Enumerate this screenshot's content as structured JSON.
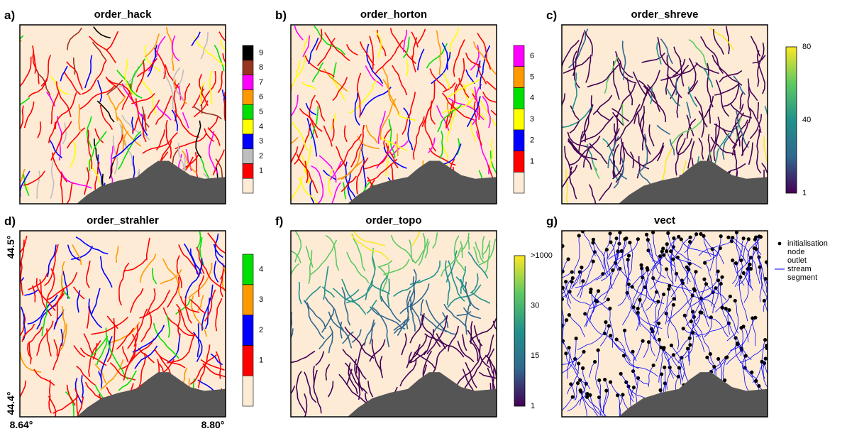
{
  "panels": [
    {
      "label": "a)",
      "title": "order_hack",
      "colorbar": {
        "kind": "discrete",
        "background": "#fdebd6",
        "labels": [
          "1",
          "2",
          "3",
          "4",
          "5",
          "6",
          "7",
          "8",
          "9"
        ],
        "colors": [
          "#ff0000",
          "#bebebe",
          "#0000ff",
          "#ffff00",
          "#00e000",
          "#ff9900",
          "#ff00ff",
          "#993322",
          "#000000"
        ]
      }
    },
    {
      "label": "b)",
      "title": "order_horton",
      "colorbar": {
        "kind": "discrete",
        "background": "#fdebd6",
        "labels": [
          "1",
          "2",
          "3",
          "4",
          "5",
          "6"
        ],
        "colors": [
          "#ff0000",
          "#0000ff",
          "#ffff00",
          "#00e000",
          "#ff9900",
          "#ff00ff"
        ]
      }
    },
    {
      "label": "c)",
      "title": "order_shreve",
      "colorbar": {
        "kind": "continuous",
        "labels": [
          "1",
          "40",
          "80"
        ],
        "colors": [
          "#440154",
          "#31688e",
          "#21918c",
          "#5ec962",
          "#fde725"
        ]
      }
    },
    {
      "label": "d)",
      "title": "order_strahler",
      "colorbar": {
        "kind": "discrete",
        "background": "#fdebd6",
        "labels": [
          "1",
          "2",
          "3",
          "4"
        ],
        "colors": [
          "#ff0000",
          "#0000ff",
          "#ff9900",
          "#00e000"
        ]
      }
    },
    {
      "label": "f)",
      "title": "order_topo",
      "colorbar": {
        "kind": "continuous",
        "labels": [
          "1",
          "15",
          "30",
          ">1000"
        ],
        "colors": [
          "#440154",
          "#31688e",
          "#21918c",
          "#5ec962",
          "#fde725"
        ]
      }
    },
    {
      "label": "g)",
      "title": "vect",
      "legend": {
        "lines": [
          "initialisation",
          "node",
          "outlet",
          "stream",
          "segment"
        ]
      }
    }
  ],
  "axes": {
    "lat_top": "44.5°",
    "lat_bottom": "44.4°",
    "lon_left": "8.64°",
    "lon_right": "8.80°"
  }
}
